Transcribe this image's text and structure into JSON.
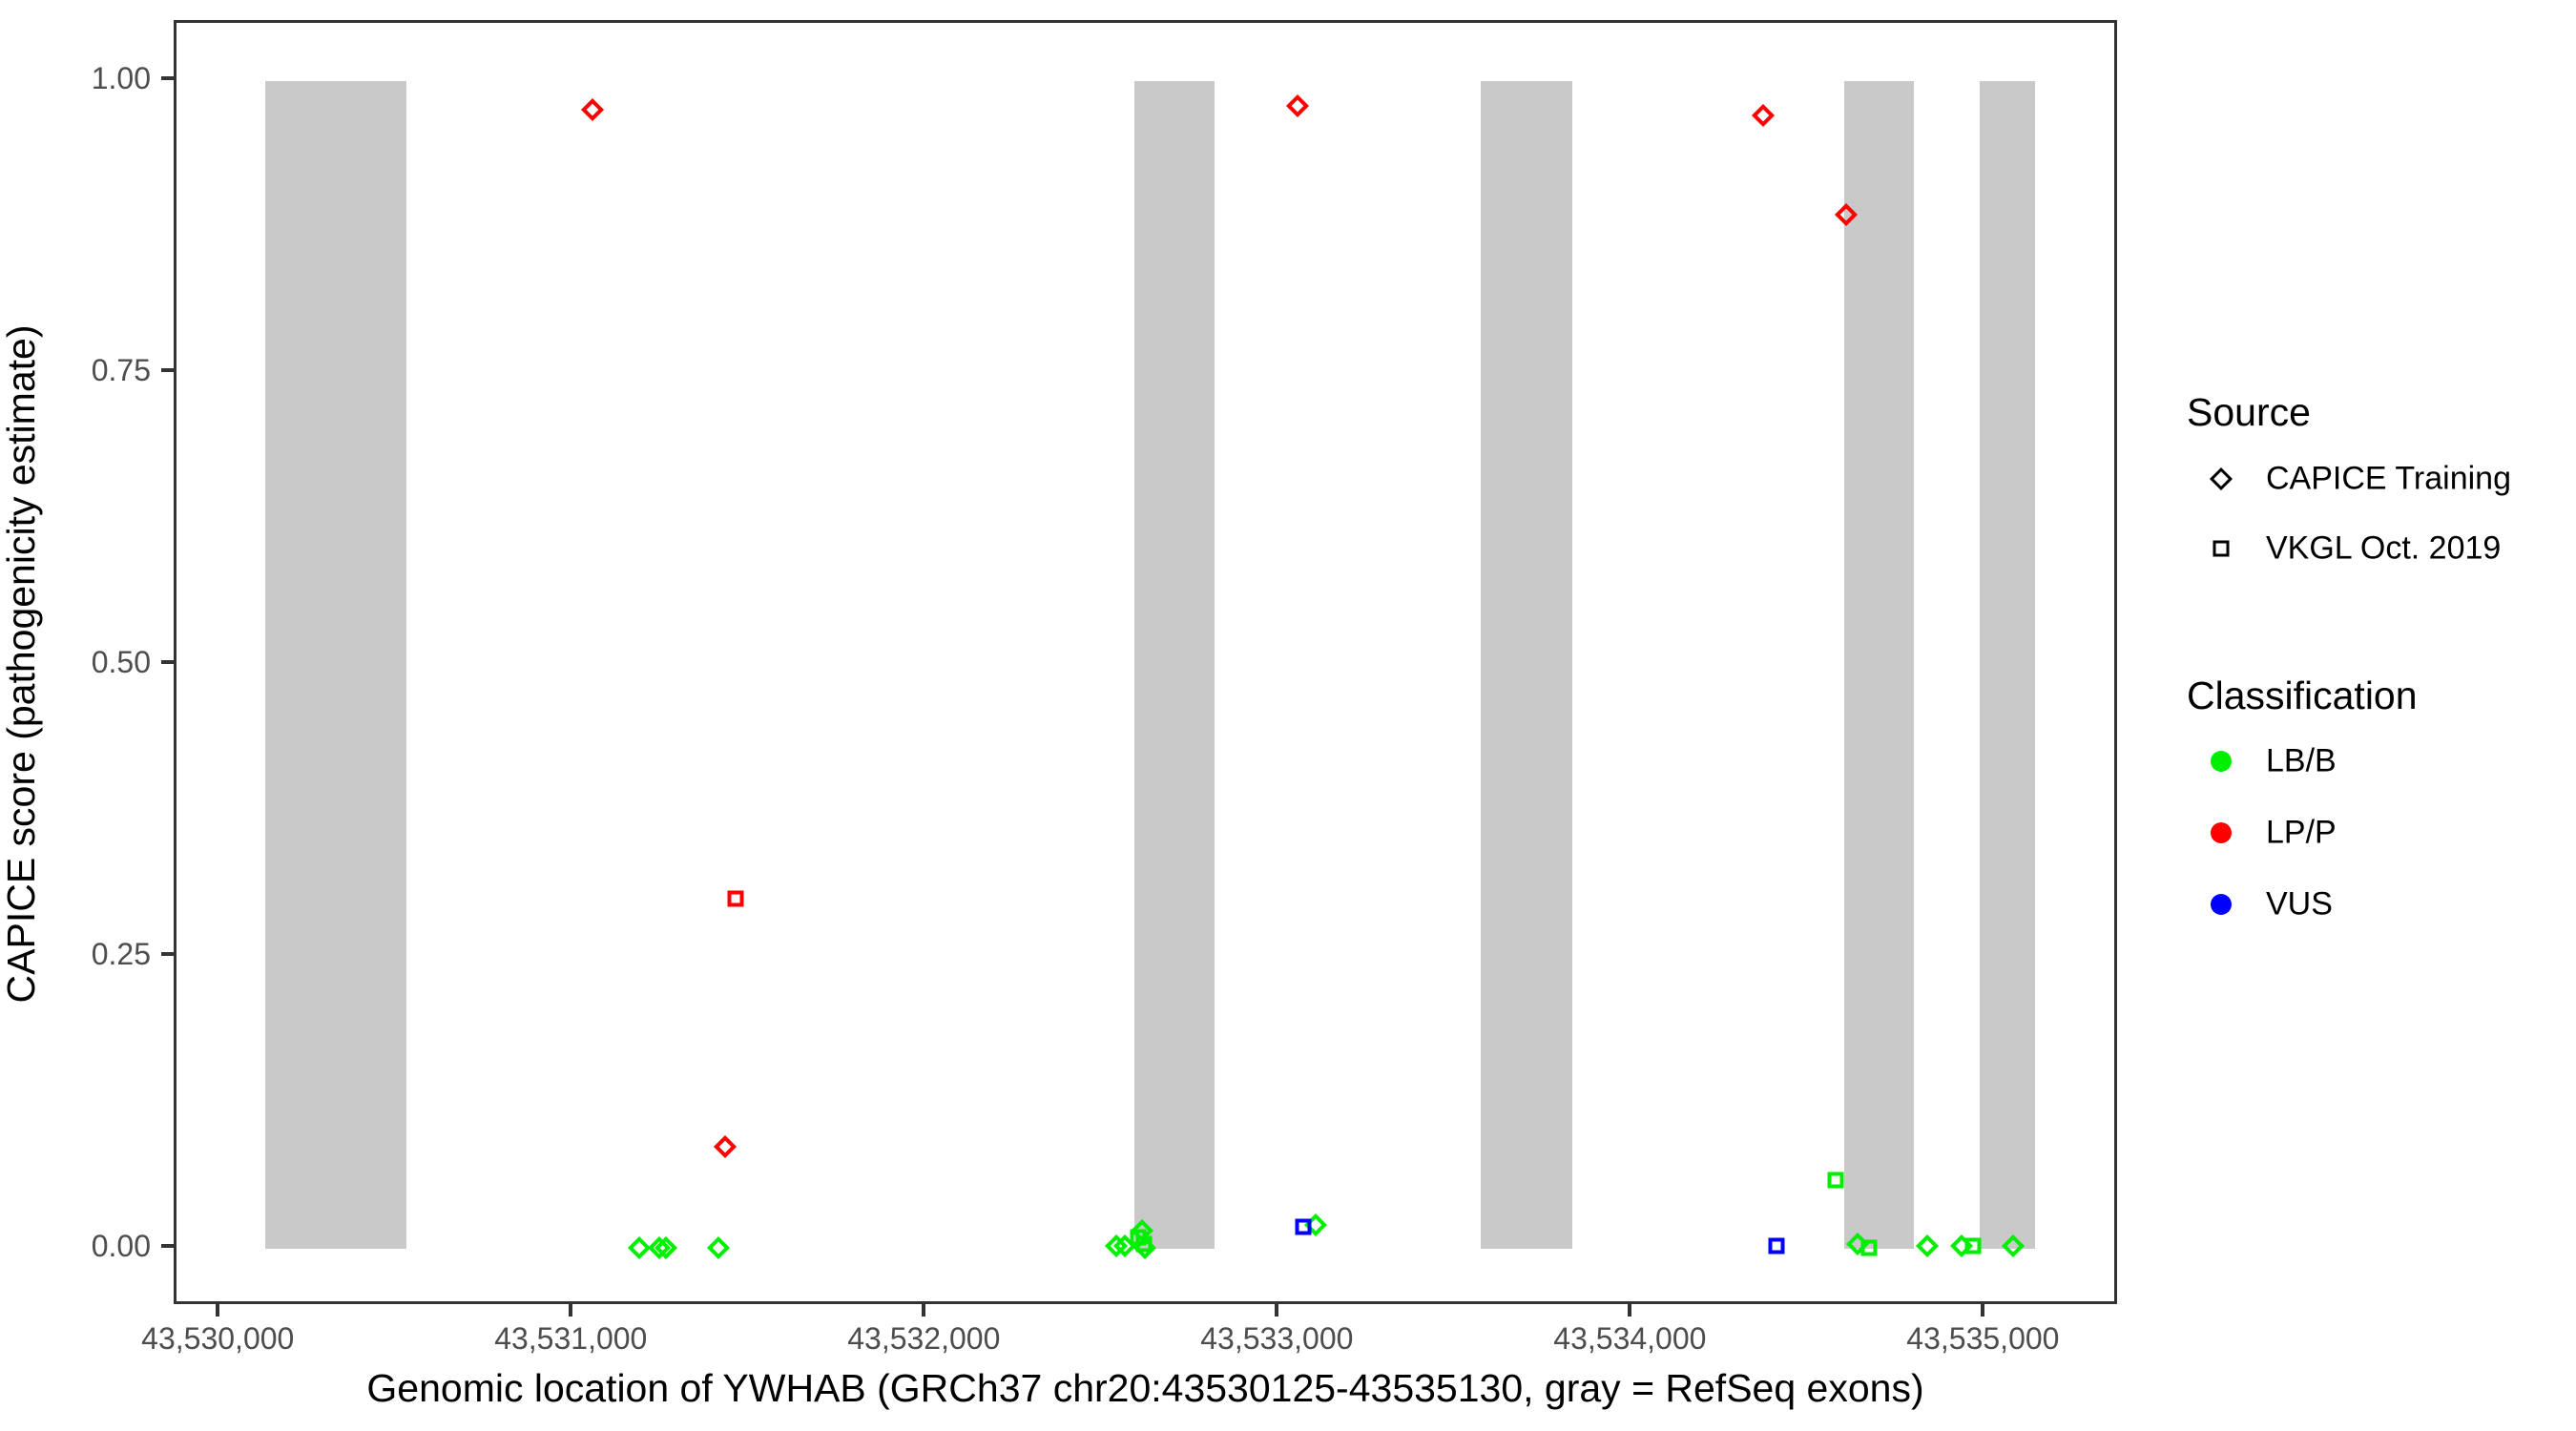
{
  "chart_data": {
    "type": "scatter",
    "title": "",
    "xlabel": "Genomic location of YWHAB (GRCh37 chr20:43530125-43535130, gray = RefSeq exons)",
    "ylabel": "CAPICE score (pathogenicity estimate)",
    "xlim": [
      43529875,
      43535380
    ],
    "ylim": [
      -0.05,
      1.05
    ],
    "grid": "off",
    "x_ticks": [
      {
        "value": 43530000,
        "label": "43,530,000"
      },
      {
        "value": 43531000,
        "label": "43,531,000"
      },
      {
        "value": 43532000,
        "label": "43,532,000"
      },
      {
        "value": 43533000,
        "label": "43,533,000"
      },
      {
        "value": 43534000,
        "label": "43,534,000"
      },
      {
        "value": 43535000,
        "label": "43,535,000"
      }
    ],
    "y_ticks": [
      {
        "value": 0.0,
        "label": "0.00"
      },
      {
        "value": 0.25,
        "label": "0.25"
      },
      {
        "value": 0.5,
        "label": "0.50"
      },
      {
        "value": 0.75,
        "label": "0.75"
      },
      {
        "value": 1.0,
        "label": "1.00"
      }
    ],
    "exon_color": "#C9C9C9",
    "exons": [
      {
        "start": 43530125,
        "end": 43530525
      },
      {
        "start": 43532589,
        "end": 43532814
      },
      {
        "start": 43533568,
        "end": 43533830
      },
      {
        "start": 43534600,
        "end": 43534795
      },
      {
        "start": 43534984,
        "end": 43535140
      }
    ],
    "classification_colors": {
      "LB/B": "#00EE00",
      "LP/P": "#FF0000",
      "VUS": "#0000FF"
    },
    "series": [
      {
        "name": "CAPICE Training",
        "shape": "diamond",
        "points": [
          {
            "x": 43531054,
            "y": 0.976,
            "classification": "LP/P"
          },
          {
            "x": 43533051,
            "y": 0.979,
            "classification": "LP/P"
          },
          {
            "x": 43534368,
            "y": 0.971,
            "classification": "LP/P"
          },
          {
            "x": 43534605,
            "y": 0.886,
            "classification": "LP/P"
          },
          {
            "x": 43531430,
            "y": 0.087,
            "classification": "LP/P"
          },
          {
            "x": 43531186,
            "y": 0.001,
            "classification": "LB/B"
          },
          {
            "x": 43531243,
            "y": 0.001,
            "classification": "LB/B"
          },
          {
            "x": 43531261,
            "y": 0.001,
            "classification": "LB/B"
          },
          {
            "x": 43531411,
            "y": 0.001,
            "classification": "LB/B"
          },
          {
            "x": 43532538,
            "y": 0.002,
            "classification": "LB/B"
          },
          {
            "x": 43532562,
            "y": 0.002,
            "classification": "LB/B"
          },
          {
            "x": 43532611,
            "y": 0.015,
            "classification": "LB/B"
          },
          {
            "x": 43532619,
            "y": 0.001,
            "classification": "LB/B"
          },
          {
            "x": 43533103,
            "y": 0.02,
            "classification": "LB/B"
          },
          {
            "x": 43534636,
            "y": 0.004,
            "classification": "LB/B"
          },
          {
            "x": 43534835,
            "y": 0.002,
            "classification": "LB/B"
          },
          {
            "x": 43534932,
            "y": 0.002,
            "classification": "LB/B"
          },
          {
            "x": 43535078,
            "y": 0.002,
            "classification": "LB/B"
          }
        ]
      },
      {
        "name": "VKGL Oct. 2019",
        "shape": "square",
        "points": [
          {
            "x": 43531460,
            "y": 0.3,
            "classification": "LP/P"
          },
          {
            "x": 43532600,
            "y": 0.01,
            "classification": "LB/B"
          },
          {
            "x": 43532614,
            "y": 0.004,
            "classification": "LB/B"
          },
          {
            "x": 43534576,
            "y": 0.059,
            "classification": "LB/B"
          },
          {
            "x": 43534668,
            "y": 0.001,
            "classification": "LB/B"
          },
          {
            "x": 43534965,
            "y": 0.002,
            "classification": "LB/B"
          },
          {
            "x": 43533068,
            "y": 0.019,
            "classification": "VUS"
          },
          {
            "x": 43534408,
            "y": 0.002,
            "classification": "VUS"
          }
        ]
      }
    ],
    "legend_position": "right"
  },
  "legend": {
    "source": {
      "title": "Source",
      "items": [
        {
          "label": "CAPICE Training",
          "shape": "diamond"
        },
        {
          "label": "VKGL Oct. 2019",
          "shape": "square"
        }
      ]
    },
    "classification": {
      "title": "Classification",
      "items": [
        {
          "label": "LB/B",
          "color": "#00EE00"
        },
        {
          "label": "LP/P",
          "color": "#FF0000"
        },
        {
          "label": "VUS",
          "color": "#0000FF"
        }
      ]
    }
  }
}
